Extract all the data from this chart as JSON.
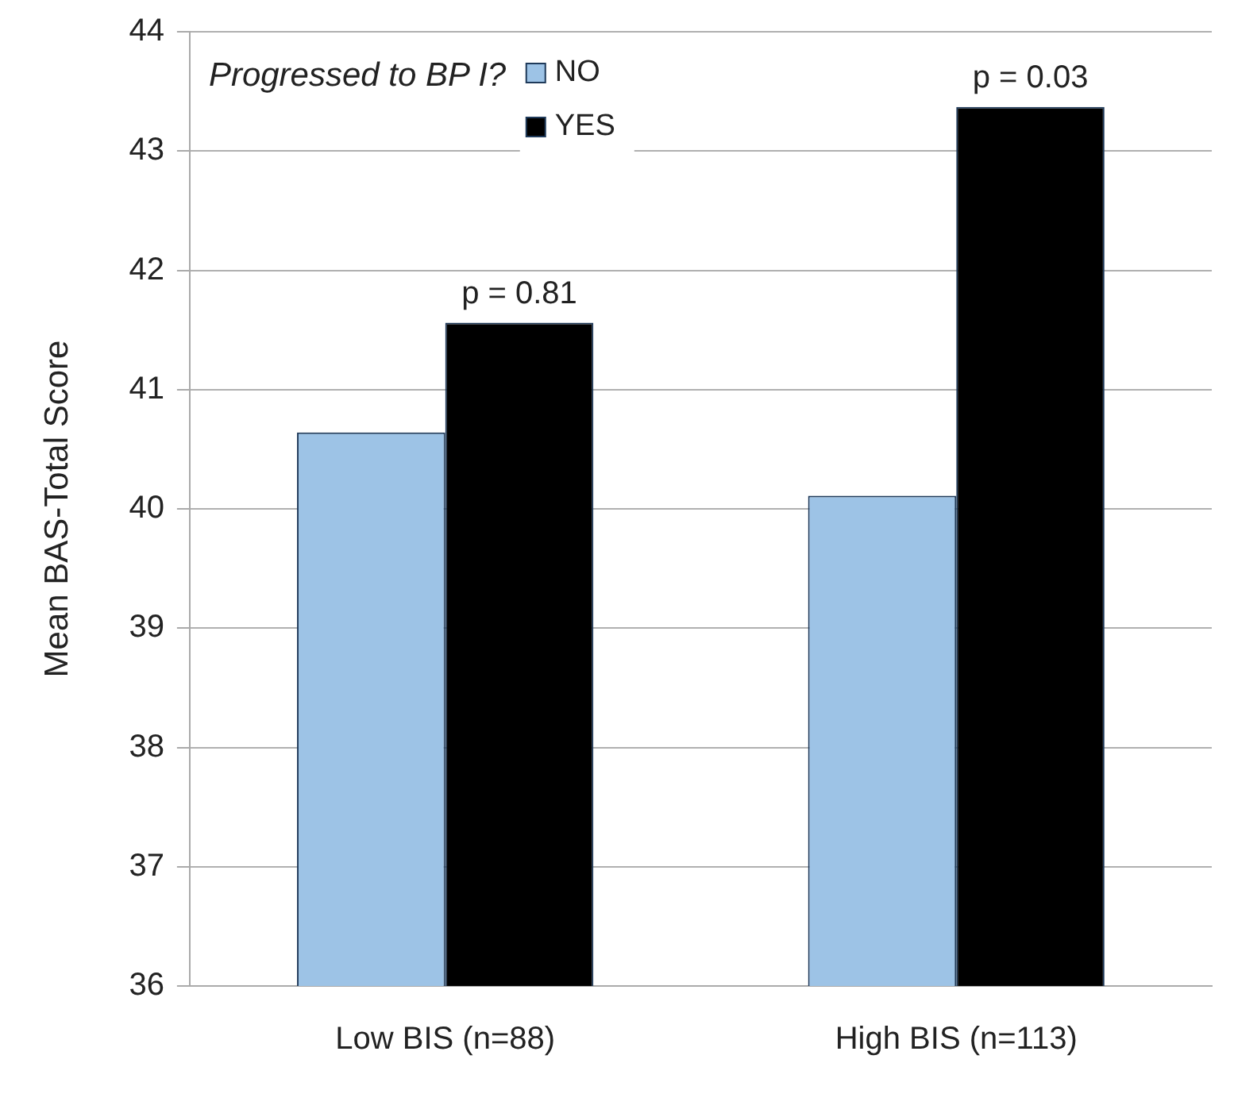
{
  "chart_data": {
    "type": "bar",
    "ylabel": "Mean BAS-Total Score",
    "legend_title": "Progressed to BP I?",
    "categories": [
      "Low BIS (n=88)",
      "High BIS (n=113)"
    ],
    "series": [
      {
        "name": "NO",
        "color": "#9dc3e6",
        "values": [
          40.64,
          40.11
        ]
      },
      {
        "name": "YES",
        "color": "#000000",
        "values": [
          41.56,
          43.37
        ]
      }
    ],
    "ylim": [
      36,
      44
    ],
    "yticks": [
      36,
      37,
      38,
      39,
      40,
      41,
      42,
      43,
      44
    ],
    "grid": "y",
    "legend": "top left",
    "annotations": [
      {
        "text": "p = 0.81",
        "x": "Low BIS (n=88)",
        "y": 41.56
      },
      {
        "text": "p = 0.03",
        "x": "High BIS (n=113)",
        "y": 43.37
      }
    ]
  }
}
